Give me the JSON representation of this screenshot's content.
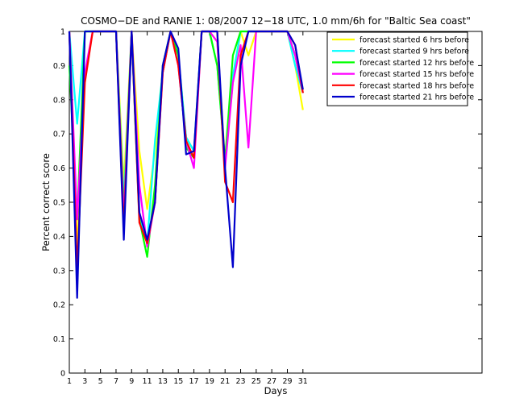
{
  "chart_data": {
    "type": "line",
    "title": "COSMO−DE and RANIE 1: 08/2007 12−18 UTC, 1.0 mm/6h for \"Baltic Sea coast\"",
    "xlabel": "Days",
    "ylabel": "Percent correct score",
    "xlim": [
      1,
      54
    ],
    "ylim": [
      0,
      1
    ],
    "xticks": [
      1,
      3,
      5,
      7,
      9,
      11,
      13,
      15,
      17,
      19,
      21,
      23,
      25,
      27,
      29,
      31
    ],
    "yticks": [
      0,
      0.1,
      0.2,
      0.3,
      0.4,
      0.5,
      0.6,
      0.7,
      0.8,
      0.9,
      1
    ],
    "ytick_labels": [
      "0",
      "0.1",
      "0.2",
      "0.3",
      "0.4",
      "0.5",
      "0.6",
      "0.7",
      "0.8",
      "0.9",
      "1"
    ],
    "legend_position": "top-right",
    "grid": false,
    "series": [
      {
        "name": "forecast started 6 hrs before",
        "color": "#ffff00",
        "x": [
          1,
          2,
          3,
          4,
          5,
          6,
          7,
          8,
          9,
          10,
          11,
          12,
          13,
          14,
          15,
          16,
          17,
          18,
          19,
          20,
          21,
          22,
          23,
          24,
          25,
          26,
          27,
          28,
          29,
          30,
          31
        ],
        "values": [
          1,
          0.35,
          1,
          1,
          1,
          1,
          1,
          0.55,
          1,
          0.65,
          0.48,
          0.65,
          0.88,
          1,
          0.93,
          0.69,
          0.65,
          1,
          1,
          0.97,
          0.62,
          0.85,
          1,
          0.93,
          1,
          1,
          1,
          1,
          1,
          0.9,
          0.77
        ]
      },
      {
        "name": "forecast started 9 hrs before",
        "color": "#00ffff",
        "x": [
          1,
          2,
          3,
          4,
          5,
          6,
          7,
          8,
          9,
          10,
          11,
          12,
          13,
          14,
          15,
          16,
          17,
          18,
          19,
          20,
          21,
          22,
          23,
          24,
          25,
          26,
          27,
          28,
          29,
          30,
          31
        ],
        "values": [
          1,
          0.73,
          1,
          1,
          1,
          1,
          1,
          0.5,
          1,
          0.45,
          0.38,
          0.68,
          0.88,
          1,
          0.93,
          0.69,
          0.65,
          1,
          1,
          0.9,
          0.62,
          0.87,
          1,
          1,
          1,
          1,
          1,
          1,
          1,
          0.9,
          0.82
        ]
      },
      {
        "name": "forecast started 12 hrs before",
        "color": "#00ff00",
        "x": [
          1,
          2,
          3,
          4,
          5,
          6,
          7,
          8,
          9,
          10,
          11,
          12,
          13,
          14,
          15,
          16,
          17,
          18,
          19,
          20,
          21,
          22,
          23,
          24,
          25,
          26,
          27,
          28,
          29,
          30,
          31
        ],
        "values": [
          0.9,
          0.45,
          1,
          1,
          1,
          1,
          1,
          0.47,
          1,
          0.45,
          0.34,
          0.55,
          0.9,
          1,
          0.93,
          0.66,
          0.63,
          1,
          1,
          0.9,
          0.62,
          0.93,
          1,
          1,
          1,
          1,
          1,
          1,
          1,
          0.93,
          0.82
        ]
      },
      {
        "name": "forecast started 15 hrs before",
        "color": "#ff00ff",
        "x": [
          1,
          2,
          3,
          4,
          5,
          6,
          7,
          8,
          9,
          10,
          11,
          12,
          13,
          14,
          15,
          16,
          17,
          18,
          19,
          20,
          21,
          22,
          23,
          24,
          25,
          26,
          27,
          28,
          29,
          30,
          31
        ],
        "values": [
          1,
          0.45,
          0.88,
          1,
          1,
          1,
          1,
          0.45,
          1,
          0.55,
          0.37,
          0.5,
          0.88,
          1,
          0.9,
          0.68,
          0.6,
          1,
          1,
          0.97,
          0.6,
          0.85,
          0.96,
          0.66,
          1,
          1,
          1,
          1,
          1,
          0.93,
          0.82
        ]
      },
      {
        "name": "forecast started 18 hrs before",
        "color": "#ff0000",
        "x": [
          1,
          2,
          3,
          4,
          5,
          6,
          7,
          8,
          9,
          10,
          11,
          12,
          13,
          14,
          15,
          16,
          17,
          18,
          19,
          20,
          21,
          22,
          23,
          24,
          25,
          26,
          27,
          28,
          29,
          30,
          31
        ],
        "values": [
          1,
          0.3,
          0.85,
          1,
          1,
          1,
          1,
          0.42,
          1,
          0.44,
          0.38,
          0.5,
          0.88,
          1,
          0.9,
          0.68,
          0.63,
          1,
          1,
          1,
          0.56,
          0.5,
          0.93,
          1,
          1,
          1,
          1,
          1,
          1,
          0.96,
          0.82
        ]
      },
      {
        "name": "forecast started 21 hrs before",
        "color": "#0000cc",
        "x": [
          1,
          2,
          3,
          4,
          5,
          6,
          7,
          8,
          9,
          10,
          11,
          12,
          13,
          14,
          15,
          16,
          17,
          18,
          19,
          20,
          21,
          22,
          23,
          24,
          25,
          26,
          27,
          28,
          29,
          30,
          31
        ],
        "values": [
          1,
          0.22,
          1,
          1,
          1,
          1,
          1,
          0.39,
          1,
          0.47,
          0.39,
          0.5,
          0.9,
          1,
          0.95,
          0.64,
          0.65,
          1,
          1,
          1,
          0.6,
          0.31,
          0.9,
          1,
          1,
          1,
          1,
          1,
          1,
          0.96,
          0.83
        ]
      }
    ]
  }
}
